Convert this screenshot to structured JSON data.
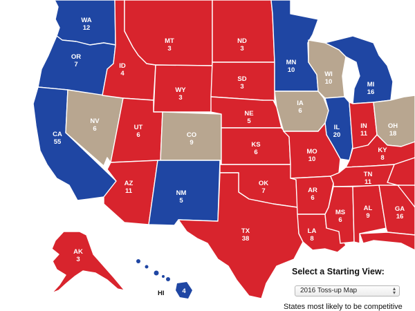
{
  "colors": {
    "republican": "#d8242d",
    "democrat": "#1f46a3",
    "tossup": "#b8a690",
    "border": "#ffffff"
  },
  "states": {
    "WA": {
      "label": "WA",
      "ev": "12",
      "party": "democrat"
    },
    "OR": {
      "label": "OR",
      "ev": "7",
      "party": "democrat"
    },
    "CA": {
      "label": "CA",
      "ev": "55",
      "party": "democrat"
    },
    "NV": {
      "label": "NV",
      "ev": "6",
      "party": "tossup"
    },
    "ID": {
      "label": "ID",
      "ev": "4",
      "party": "republican"
    },
    "MT": {
      "label": "MT",
      "ev": "3",
      "party": "republican"
    },
    "WY": {
      "label": "WY",
      "ev": "3",
      "party": "republican"
    },
    "UT": {
      "label": "UT",
      "ev": "6",
      "party": "republican"
    },
    "AZ": {
      "label": "AZ",
      "ev": "11",
      "party": "republican"
    },
    "CO": {
      "label": "CO",
      "ev": "9",
      "party": "tossup"
    },
    "NM": {
      "label": "NM",
      "ev": "5",
      "party": "democrat"
    },
    "ND": {
      "label": "ND",
      "ev": "3",
      "party": "republican"
    },
    "SD": {
      "label": "SD",
      "ev": "3",
      "party": "republican"
    },
    "NE": {
      "label": "NE",
      "ev": "5",
      "party": "republican"
    },
    "KS": {
      "label": "KS",
      "ev": "6",
      "party": "republican"
    },
    "OK": {
      "label": "OK",
      "ev": "7",
      "party": "republican"
    },
    "TX": {
      "label": "TX",
      "ev": "38",
      "party": "republican"
    },
    "MN": {
      "label": "MN",
      "ev": "10",
      "party": "democrat"
    },
    "IA": {
      "label": "IA",
      "ev": "6",
      "party": "tossup"
    },
    "MO": {
      "label": "MO",
      "ev": "10",
      "party": "republican"
    },
    "AR": {
      "label": "AR",
      "ev": "6",
      "party": "republican"
    },
    "LA": {
      "label": "LA",
      "ev": "8",
      "party": "republican"
    },
    "WI": {
      "label": "WI",
      "ev": "10",
      "party": "tossup"
    },
    "IL": {
      "label": "IL",
      "ev": "20",
      "party": "democrat"
    },
    "MI": {
      "label": "MI",
      "ev": "16",
      "party": "democrat"
    },
    "IN": {
      "label": "IN",
      "ev": "11",
      "party": "republican"
    },
    "OH": {
      "label": "OH",
      "ev": "18",
      "party": "tossup"
    },
    "KY": {
      "label": "KY",
      "ev": "8",
      "party": "republican"
    },
    "TN": {
      "label": "TN",
      "ev": "11",
      "party": "republican"
    },
    "MS": {
      "label": "MS",
      "ev": "6",
      "party": "republican"
    },
    "AL": {
      "label": "AL",
      "ev": "9",
      "party": "republican"
    },
    "GA": {
      "label": "GA",
      "ev": "16",
      "party": "republican"
    },
    "AK": {
      "label": "AK",
      "ev": "3",
      "party": "republican"
    },
    "HI": {
      "label": "HI",
      "ev": "4",
      "party": "democrat"
    }
  },
  "controls": {
    "start_title": "Select a Starting View:",
    "select_value": "2016 Toss-up Map",
    "competitive_text": "States most likely to be competitive"
  }
}
